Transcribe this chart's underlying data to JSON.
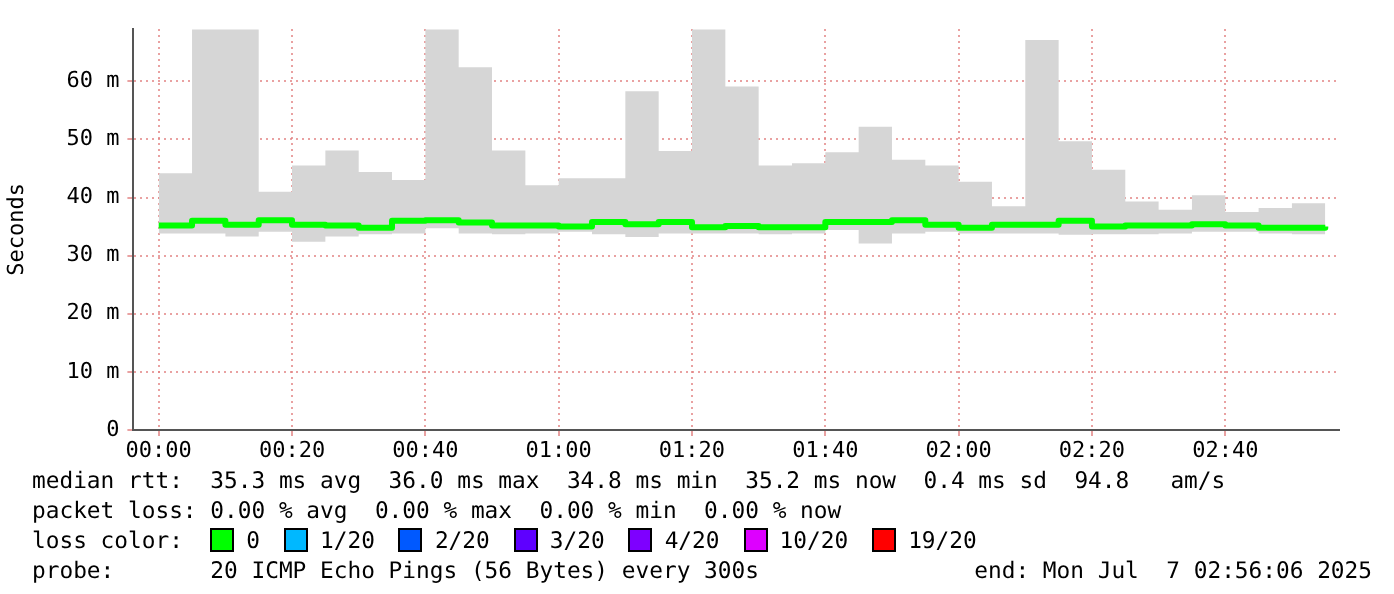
{
  "chart_data": {
    "type": "step",
    "ylabel": "Seconds",
    "x": [
      0,
      0.0833,
      0.1667,
      0.25,
      0.3333,
      0.4167,
      0.5,
      0.5833,
      0.6667,
      0.75,
      0.8333,
      0.9167,
      1,
      1.0833,
      1.1667,
      1.25,
      1.3333,
      1.4167,
      1.5,
      1.5833,
      1.6667,
      1.75,
      1.8333,
      1.9167,
      2,
      2.0833,
      2.1667,
      2.25,
      2.3333,
      2.4167,
      2.5,
      2.5833,
      2.6667,
      2.75,
      2.8333,
      2.9167
    ],
    "xlim": [
      -0.0633,
      2.95
    ],
    "xticks": [
      {
        "value": 0,
        "label": "00:00"
      },
      {
        "value": 0.3333,
        "label": "00:20"
      },
      {
        "value": 0.6667,
        "label": "00:40"
      },
      {
        "value": 1,
        "label": "01:00"
      },
      {
        "value": 1.3333,
        "label": "01:20"
      },
      {
        "value": 1.6667,
        "label": "01:40"
      },
      {
        "value": 2,
        "label": "02:00"
      },
      {
        "value": 2.3333,
        "label": "02:20"
      },
      {
        "value": 2.6667,
        "label": "02:40"
      }
    ],
    "ylim": [
      0,
      69
    ],
    "yticks": [
      0,
      {
        "value": 10,
        "label": "10 m"
      },
      {
        "value": 20,
        "label": "20 m"
      },
      {
        "value": 30,
        "label": "30 m"
      },
      {
        "value": 40,
        "label": "40 m"
      },
      {
        "value": 50,
        "label": "50 m"
      },
      {
        "value": 60,
        "label": "60 m"
      }
    ],
    "grid": true,
    "legend": "bottom",
    "legend_title": "loss color:",
    "series": [
      {
        "name": "0",
        "color": "#00ff00",
        "values": [
          35.2,
          36.0,
          35.3,
          36.1,
          35.3,
          35.2,
          34.8,
          36.0,
          36.1,
          35.7,
          35.2,
          35.2,
          35.0,
          35.8,
          35.4,
          35.8,
          34.9,
          35.1,
          34.9,
          34.9,
          35.8,
          35.8,
          36.1,
          35.3,
          34.8,
          35.3,
          35.3,
          36.0,
          35.0,
          35.2,
          35.2,
          35.4,
          35.2,
          34.8,
          34.8,
          35.0
        ],
        "lower": [
          33.8,
          33.8,
          33.3,
          34.1,
          32.4,
          33.3,
          33.7,
          33.8,
          34.7,
          33.8,
          33.7,
          33.8,
          34.1,
          33.7,
          33.2,
          33.8,
          33.8,
          33.8,
          33.7,
          33.8,
          34.4,
          32.1,
          33.8,
          34.1,
          33.8,
          33.8,
          33.8,
          33.6,
          33.7,
          33.7,
          33.8,
          34.1,
          34.1,
          33.8,
          33.7,
          33.8
        ],
        "upper": [
          44.2,
          68.9,
          68.9,
          41.0,
          45.5,
          48.1,
          44.4,
          43.0,
          68.9,
          62.4,
          48.1,
          42.1,
          43.3,
          43.3,
          58.3,
          48.0,
          68.9,
          59.1,
          45.5,
          45.9,
          47.8,
          52.2,
          46.5,
          45.5,
          42.7,
          38.5,
          67.1,
          49.7,
          44.8,
          39.3,
          37.9,
          40.4,
          37.5,
          38.2,
          39.0,
          38.2
        ]
      },
      {
        "name": "1/20",
        "color": "#00b8ff",
        "values": [
          null,
          null,
          null,
          null,
          null,
          null,
          null,
          null,
          null,
          null,
          null,
          null,
          null,
          null,
          null,
          null,
          null,
          null,
          null,
          null,
          null,
          null,
          null,
          null,
          null,
          null,
          null,
          null,
          null,
          null,
          null,
          null,
          null,
          null,
          null,
          null
        ]
      },
      {
        "name": "2/20",
        "color": "#0059ff",
        "values": [
          null,
          null,
          null,
          null,
          null,
          null,
          null,
          null,
          null,
          null,
          null,
          null,
          null,
          null,
          null,
          null,
          null,
          null,
          null,
          null,
          null,
          null,
          null,
          null,
          null,
          null,
          null,
          null,
          null,
          null,
          null,
          null,
          null,
          null,
          null,
          null
        ]
      },
      {
        "name": "3/20",
        "color": "#5e00ff",
        "values": [
          null,
          null,
          null,
          null,
          null,
          null,
          null,
          null,
          null,
          null,
          null,
          null,
          null,
          null,
          null,
          null,
          null,
          null,
          null,
          null,
          null,
          null,
          null,
          null,
          null,
          null,
          null,
          null,
          null,
          null,
          null,
          null,
          null,
          null,
          null,
          null
        ]
      },
      {
        "name": "4/20",
        "color": "#7e00ff",
        "values": [
          null,
          null,
          null,
          null,
          null,
          null,
          null,
          null,
          null,
          null,
          null,
          null,
          null,
          null,
          null,
          null,
          null,
          null,
          null,
          null,
          null,
          null,
          null,
          null,
          null,
          null,
          null,
          null,
          null,
          null,
          null,
          null,
          null,
          null,
          null,
          null
        ]
      },
      {
        "name": "10/20",
        "color": "#dd00ff",
        "values": [
          null,
          null,
          null,
          null,
          null,
          null,
          null,
          null,
          null,
          null,
          null,
          null,
          null,
          null,
          null,
          null,
          null,
          null,
          null,
          null,
          null,
          null,
          null,
          null,
          null,
          null,
          null,
          null,
          null,
          null,
          null,
          null,
          null,
          null,
          null,
          null
        ]
      },
      {
        "name": "19/20",
        "color": "#ff0000",
        "values": [
          null,
          null,
          null,
          null,
          null,
          null,
          null,
          null,
          null,
          null,
          null,
          null,
          null,
          null,
          null,
          null,
          null,
          null,
          null,
          null,
          null,
          null,
          null,
          null,
          null,
          null,
          null,
          null,
          null,
          null,
          null,
          null,
          null,
          null,
          null,
          null
        ]
      }
    ],
    "annotations": [
      "median rtt:  35.3 ms avg  36.0 ms max  34.8 ms min  35.2 ms now  0.4 ms sd  94.8   am/s",
      "packet loss: 0.00 % avg  0.00 % max  0.00 % min  0.00 % now",
      "probe:       20 ICMP Echo Pings (56 Bytes) every 300s",
      "end: Mon Jul  7 02:56:06 2025"
    ]
  }
}
